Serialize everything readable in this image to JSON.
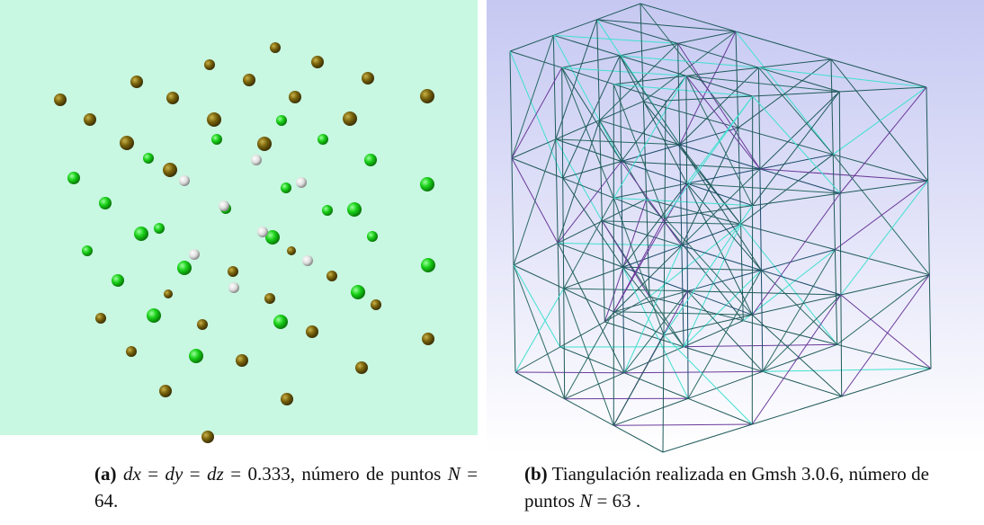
{
  "panels": [
    {
      "label": "(a)",
      "caption": [
        {
          "text": "dx",
          "italic": true
        },
        {
          "text": " = "
        },
        {
          "text": "dy",
          "italic": true
        },
        {
          "text": " = "
        },
        {
          "text": "dz",
          "italic": true
        },
        {
          "text": " = 0.333, número de puntos "
        },
        {
          "text": "N",
          "italic": true
        },
        {
          "text": " = 64."
        }
      ]
    },
    {
      "label": "(b)",
      "caption": [
        {
          "text": "Tiangulación realizada en Gmsh 3.0.6, número de puntos "
        },
        {
          "text": "N",
          "italic": true
        },
        {
          "text": " = 63 ."
        }
      ]
    }
  ]
}
